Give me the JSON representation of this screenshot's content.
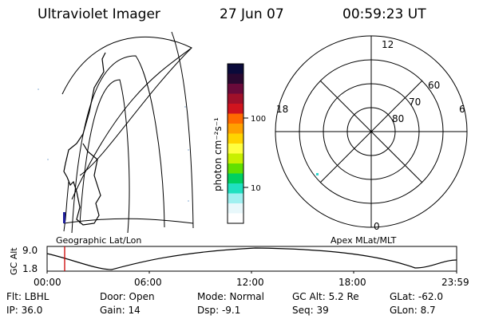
{
  "header": {
    "instrument": "Ultraviolet Imager",
    "date": "27 Jun 07",
    "time": "00:59:23 UT"
  },
  "colorbar": {
    "unit_label": "photon cm⁻²s⁻¹",
    "tick_labels": [
      "100",
      "10"
    ],
    "colors": [
      "#0a0a3a",
      "#2a0830",
      "#6a0a3a",
      "#a0102a",
      "#d0141e",
      "#ff6a00",
      "#ffa000",
      "#ffd400",
      "#ffff40",
      "#c8f000",
      "#60e000",
      "#00d060",
      "#20e0c0",
      "#a0f0f0",
      "#e8f8fb",
      "#ffffff"
    ]
  },
  "geo_label": "Geographic Lat/Lon",
  "apex_label": "Apex MLat/MLT",
  "polar": {
    "ring_labels": [
      "60",
      "70",
      "80"
    ],
    "mlt_labels": {
      "top": "12",
      "left": "18",
      "right": "6",
      "bottom": "0"
    }
  },
  "gc_alt": {
    "axis_title": "GC Alt",
    "ticks": [
      "9.0",
      "1.8"
    ],
    "time_ticks": [
      "00:00",
      "06:00",
      "12:00",
      "18:00",
      "23:59"
    ],
    "marker_time": "00:59"
  },
  "info": {
    "filter": "Flt: LBHL",
    "ip": "IP: 36.0",
    "door": "Door: Open",
    "gain": "Gain: 14",
    "mode": "Mode: Normal",
    "dsp": "Dsp:    -9.1",
    "gcalt": "GC Alt: 5.2 Re",
    "seq": "Seq: 39",
    "glat": "GLat:  -62.0",
    "glon": "GLon:    8.7"
  },
  "colors": {
    "marker": "#cc0000",
    "spot": "#30d8d0"
  }
}
